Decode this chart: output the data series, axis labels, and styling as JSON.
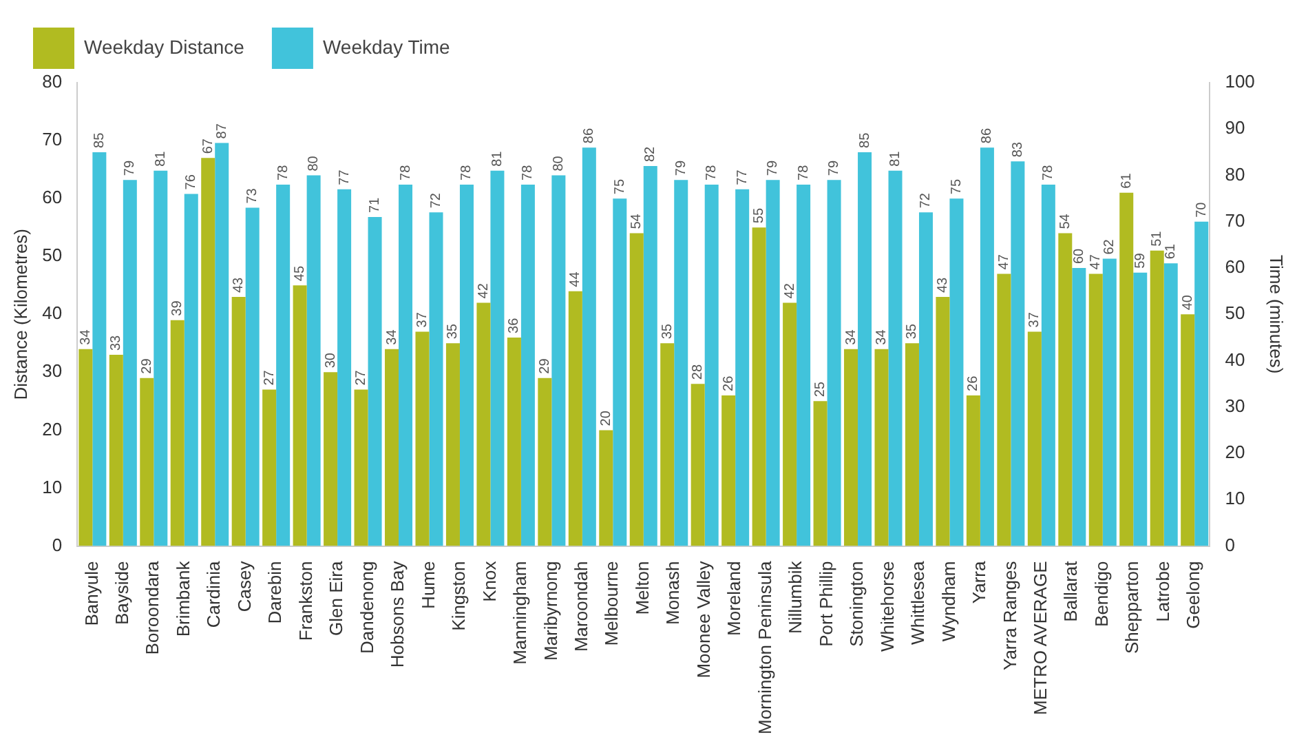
{
  "chart_data": {
    "type": "bar",
    "ylabel": "Distance (Kilometres)",
    "y2label": "Time (minutes)",
    "categories": [
      "Banyule",
      "Bayside",
      "Boroondara",
      "Brimbank",
      "Cardinia",
      "Casey",
      "Darebin",
      "Frankston",
      "Glen Eira",
      "Dandenong",
      "Hobsons Bay",
      "Hume",
      "Kingston",
      "Knox",
      "Manningham",
      "Maribyrnong",
      "Maroondah",
      "Melbourne",
      "Melton",
      "Monash",
      "Moonee Valley",
      "Moreland",
      "Mornington Peninsula",
      "Nillumbik",
      "Port Phillip",
      "Stonington",
      "Whitehorse",
      "Whittlesea",
      "Wyndham",
      "Yarra",
      "Yarra Ranges",
      "METRO AVERAGE",
      "Ballarat",
      "Bendigo",
      "Shepparton",
      "Latrobe",
      "Geelong"
    ],
    "series": [
      {
        "name": "Weekday Distance",
        "color": "#b1bb21",
        "values": [
          34,
          33,
          29,
          39,
          67,
          43,
          27,
          45,
          30,
          27,
          34,
          37,
          35,
          42,
          36,
          29,
          44,
          20,
          54,
          35,
          28,
          26,
          55,
          42,
          25,
          34,
          34,
          35,
          43,
          26,
          47,
          37,
          54,
          47,
          61,
          51,
          40
        ]
      },
      {
        "name": "Weekday Time",
        "color": "#41c3db",
        "axis": "y2",
        "values": [
          85,
          79,
          81,
          76,
          87,
          73,
          78,
          80,
          77,
          71,
          78,
          72,
          78,
          81,
          78,
          80,
          86,
          75,
          82,
          79,
          78,
          77,
          79,
          78,
          79,
          85,
          81,
          72,
          75,
          86,
          83,
          78,
          60,
          62,
          59,
          61,
          70
        ]
      }
    ],
    "ylim": [
      0,
      80
    ],
    "yticks": [
      0,
      10,
      20,
      30,
      40,
      50,
      60,
      70,
      80
    ],
    "y2lim": [
      0,
      100
    ],
    "y2ticks": [
      0,
      10,
      20,
      30,
      40,
      50,
      60,
      70,
      80,
      90,
      100
    ],
    "grid": false,
    "legend": "top left",
    "data_labels": true
  }
}
